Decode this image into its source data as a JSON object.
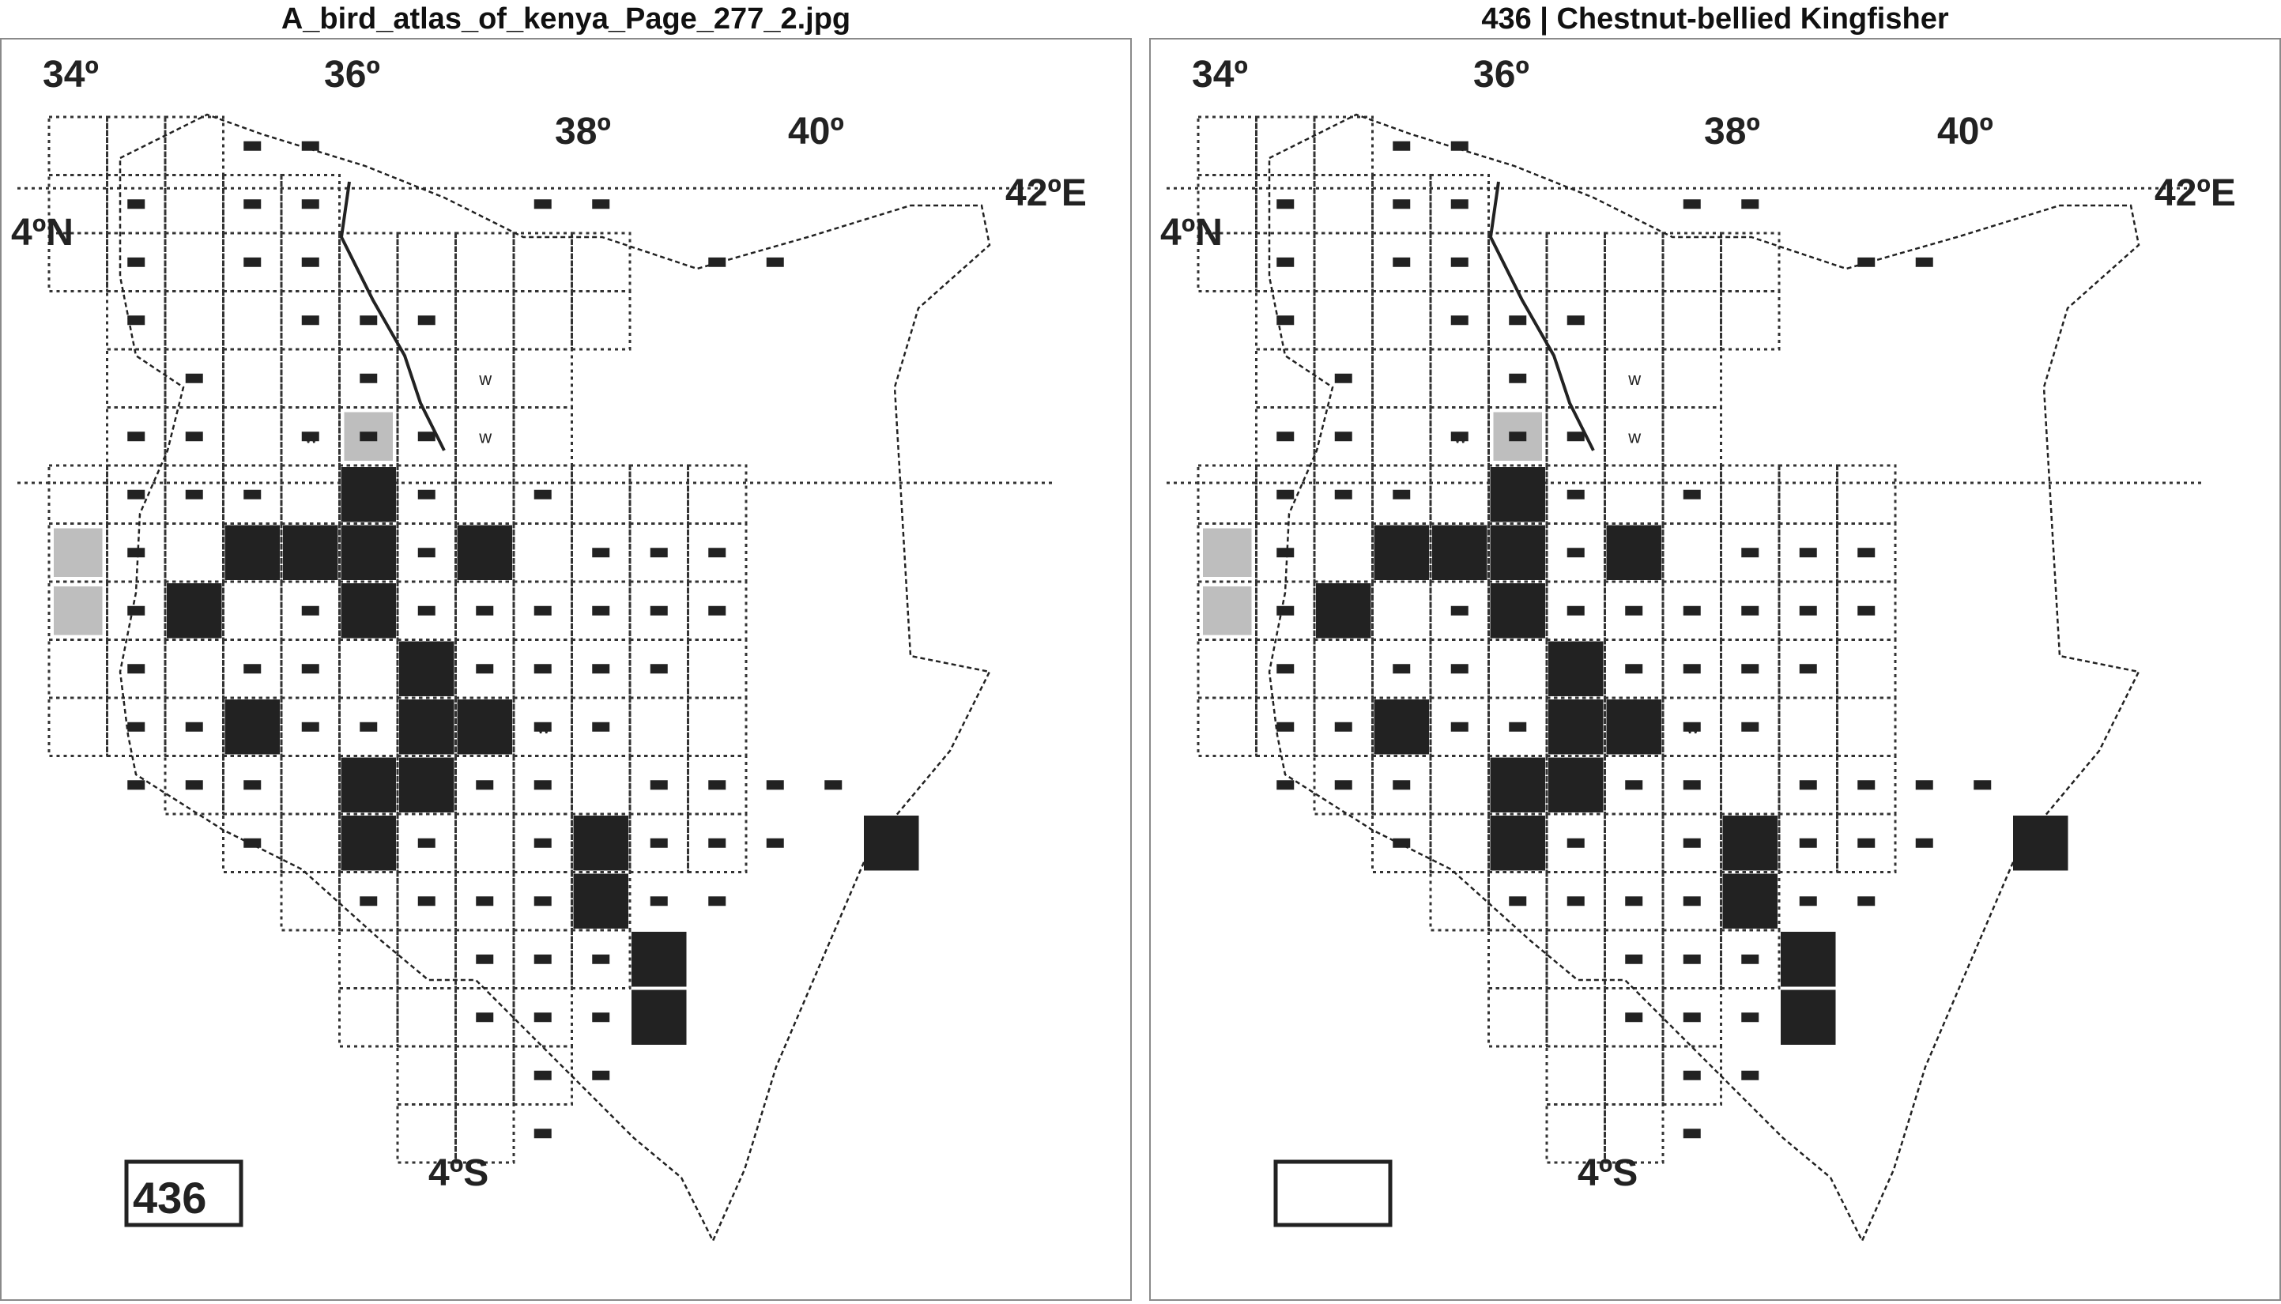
{
  "panels": [
    {
      "title": "A_bird_atlas_of_kenya_Page_277_2.jpg",
      "species_number": "436",
      "labels": {
        "lon34": "34º",
        "lon36": "36º",
        "lon38": "38º",
        "lon40": "40º",
        "lon42": "42ºE",
        "lat4n": "4ºN",
        "lat4s": "4ºS"
      },
      "w_mark": "w"
    },
    {
      "title": "436 | Chestnut-bellied Kingfisher",
      "species_number": "",
      "labels": {
        "lon34": "34º",
        "lon36": "36º",
        "lon38": "38º",
        "lon40": "40º",
        "lon42": "42ºE",
        "lat4n": "4ºN",
        "lat4s": "4ºS"
      },
      "w_mark": "w"
    }
  ],
  "colors": {
    "ink": "#222222",
    "grid": "#333333",
    "hatch": "#888888",
    "border": "#8a8a8a"
  }
}
